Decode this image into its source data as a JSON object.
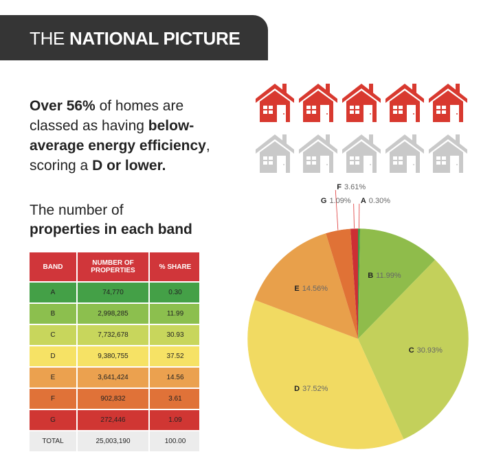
{
  "header": {
    "title_light": "THE",
    "title_bold": "NATIONAL PICTURE"
  },
  "intro": {
    "part1": "Over 56%",
    "part2": "of homes are classed as having",
    "part3": "below-average energy efficiency",
    "part4": ", scoring a",
    "part5": "D or lower."
  },
  "subtitle": {
    "line1": "The number of",
    "line2": "properties in each band"
  },
  "table": {
    "headers": [
      "BAND",
      "NUMBER OF PROPERTIES",
      "% SHARE"
    ],
    "rows": [
      [
        "A",
        "74,770",
        "0.30"
      ],
      [
        "B",
        "2,998,285",
        "11.99"
      ],
      [
        "C",
        "7,732,678",
        "30.93"
      ],
      [
        "D",
        "9,380,755",
        "37.52"
      ],
      [
        "E",
        "3,641,424",
        "14.56"
      ],
      [
        "F",
        "902,832",
        "3.61"
      ],
      [
        "G",
        "272,446",
        "1.09"
      ],
      [
        "TOTAL",
        "25,003,190",
        "100.00"
      ]
    ]
  },
  "chart_data": {
    "type": "pie",
    "categories": [
      "A",
      "B",
      "C",
      "D",
      "E",
      "F",
      "G"
    ],
    "values": [
      0.3,
      11.99,
      30.93,
      37.52,
      14.56,
      3.61,
      1.09
    ],
    "value_labels": [
      "0.30%",
      "11.99%",
      "30.93%",
      "37.52%",
      "14.56%",
      "3.61%",
      "1.09%"
    ],
    "colors": [
      "#3d9b47",
      "#8fbc4b",
      "#c3d05b",
      "#f1da62",
      "#e8a04b",
      "#e07236",
      "#cc2f34"
    ]
  }
}
